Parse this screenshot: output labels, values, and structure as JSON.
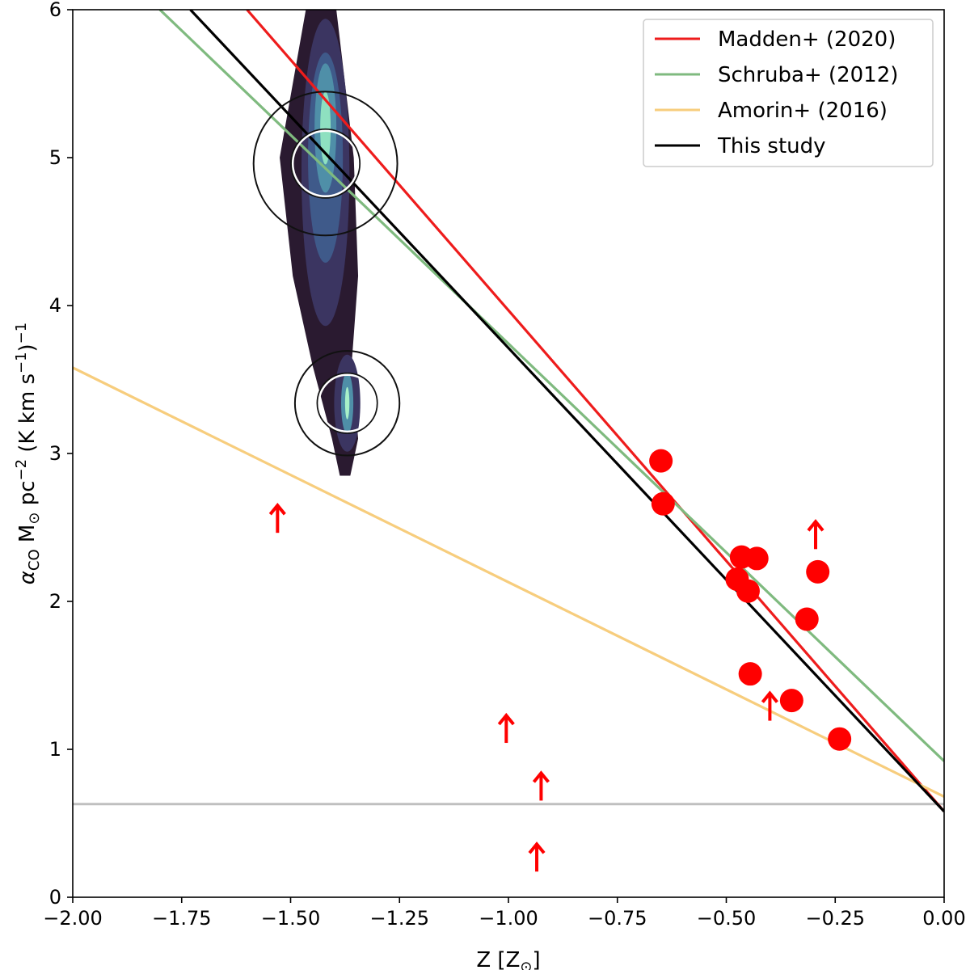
{
  "chart_data": {
    "type": "scatter",
    "xlabel_base": "Z [Z",
    "xlabel_sub": "⊙",
    "xlabel_close": "]",
    "ylabel_alpha": "α",
    "ylabel_alpha_sub": "CO",
    "ylabel_mid": " M",
    "ylabel_msun_sub": "⊙",
    "ylabel_pc": "  pc",
    "ylabel_pc_exp": "−2",
    "ylabel_kkms": " (K km s",
    "ylabel_s_exp": "−1",
    "ylabel_close": ")",
    "ylabel_close_exp": "−1",
    "xlim": [
      -2.0,
      0.0
    ],
    "ylim": [
      0,
      6
    ],
    "xticks": [
      -2.0,
      -1.75,
      -1.5,
      -1.25,
      -1.0,
      -0.75,
      -0.5,
      -0.25,
      0.0
    ],
    "xtick_labels": [
      "−2.00",
      "−1.75",
      "−1.50",
      "−1.25",
      "−1.00",
      "−0.75",
      "−0.50",
      "−0.25",
      "0.00"
    ],
    "yticks": [
      0,
      1,
      2,
      3,
      4,
      5,
      6
    ],
    "ytick_labels": [
      "0",
      "1",
      "2",
      "3",
      "4",
      "5",
      "6"
    ],
    "reference_line": {
      "y": 0.63,
      "color": "#bfbfbf"
    },
    "legend_position": "top-right",
    "series": [
      {
        "name": "Madden+ (2020)",
        "color": "#ee1c1c",
        "x": [
          -1.6,
          0.0
        ],
        "y": [
          6.0,
          0.58
        ]
      },
      {
        "name": "Schruba+ (2012)",
        "color": "#7fba7f",
        "x": [
          -1.8,
          0.0
        ],
        "y": [
          6.0,
          0.92
        ]
      },
      {
        "name": "Amorin+ (2016)",
        "color": "#f7cd7d",
        "x": [
          -2.0,
          0.0
        ],
        "y": [
          3.58,
          0.68
        ]
      },
      {
        "name": "This study",
        "color": "#000000",
        "x": [
          -1.73,
          0.0
        ],
        "y": [
          6.0,
          0.58
        ]
      }
    ],
    "points": {
      "color": "#ff0000",
      "x": [
        -0.65,
        -0.645,
        -0.465,
        -0.475,
        -0.43,
        -0.45,
        -0.29,
        -0.315,
        -0.445,
        -0.35,
        -0.24
      ],
      "y": [
        2.95,
        2.66,
        2.3,
        2.15,
        2.29,
        2.07,
        2.2,
        1.88,
        1.51,
        1.33,
        1.07
      ]
    },
    "lower_limits": {
      "color": "#ff0000",
      "x": [
        -1.53,
        -1.005,
        -0.925,
        -0.935,
        -0.4,
        -0.295
      ],
      "y": [
        2.54,
        1.12,
        0.73,
        0.25,
        1.27,
        2.43
      ]
    },
    "density_contour": {
      "x_center": [
        -1.43,
        -1.44,
        -1.42,
        -1.405,
        -1.375,
        -1.375,
        -1.375
      ],
      "y": [
        6.0,
        5.0,
        4.2,
        3.6,
        3.1,
        2.85,
        3.34
      ],
      "peaks": [
        {
          "x": -1.42,
          "y": 5.2
        },
        {
          "x": -1.37,
          "y": 3.34
        }
      ]
    },
    "circles": [
      {
        "x": -1.42,
        "y": 4.96,
        "r_inner": 0.075,
        "r_outer": 0.165
      },
      {
        "x": -1.37,
        "y": 3.34,
        "r_inner": 0.065,
        "r_outer": 0.12
      }
    ]
  }
}
